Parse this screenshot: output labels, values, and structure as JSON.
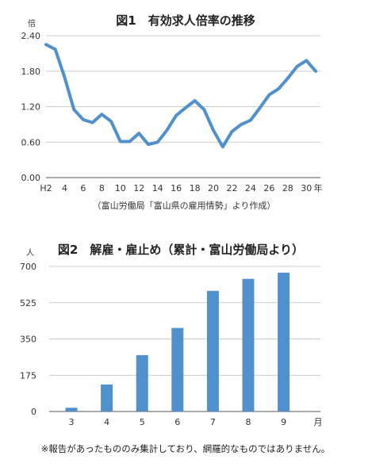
{
  "chart_data": [
    {
      "type": "line",
      "title": "図1　有効求人倍率の推移",
      "source": "（富山労働局「富山県の雇用情勢」より作成）",
      "y_unit": "倍",
      "x_unit": "年",
      "ylim": [
        0,
        2.4
      ],
      "yticks": [
        "0.00",
        "0.60",
        "1.20",
        "1.80",
        "2.40"
      ],
      "ytick_values": [
        0,
        0.6,
        1.2,
        1.8,
        2.4
      ],
      "xtick_labels": [
        "H2",
        "4",
        "6",
        "8",
        "10",
        "12",
        "14",
        "16",
        "18",
        "20",
        "22",
        "24",
        "26",
        "28",
        "30"
      ],
      "color": "#4f90cd",
      "grid": true,
      "x": [
        2,
        3,
        4,
        5,
        6,
        7,
        8,
        9,
        10,
        11,
        12,
        13,
        14,
        15,
        16,
        17,
        18,
        19,
        20,
        21,
        22,
        23,
        24,
        25,
        26,
        27,
        28,
        29,
        30,
        31
      ],
      "values": [
        2.25,
        2.17,
        1.7,
        1.15,
        0.98,
        0.93,
        1.07,
        0.95,
        0.61,
        0.61,
        0.75,
        0.56,
        0.6,
        0.8,
        1.05,
        1.18,
        1.3,
        1.15,
        0.8,
        0.52,
        0.78,
        0.9,
        0.97,
        1.18,
        1.4,
        1.5,
        1.68,
        1.88,
        1.98,
        1.8
      ]
    },
    {
      "type": "bar",
      "title": "図2　解雇・雇止め（累計・富山労働局より）",
      "y_unit": "人",
      "x_unit": "月",
      "ylim": [
        0,
        700
      ],
      "yticks": [
        "0",
        "175",
        "350",
        "525",
        "700"
      ],
      "ytick_values": [
        0,
        175,
        350,
        525,
        700
      ],
      "categories": [
        "3",
        "4",
        "5",
        "6",
        "7",
        "8",
        "9"
      ],
      "values": [
        18,
        130,
        272,
        403,
        582,
        640,
        670
      ],
      "color": "#4f90cd",
      "grid": true
    }
  ],
  "footnote": "※報告があったもののみ集計しており、網羅的なものではありません。"
}
